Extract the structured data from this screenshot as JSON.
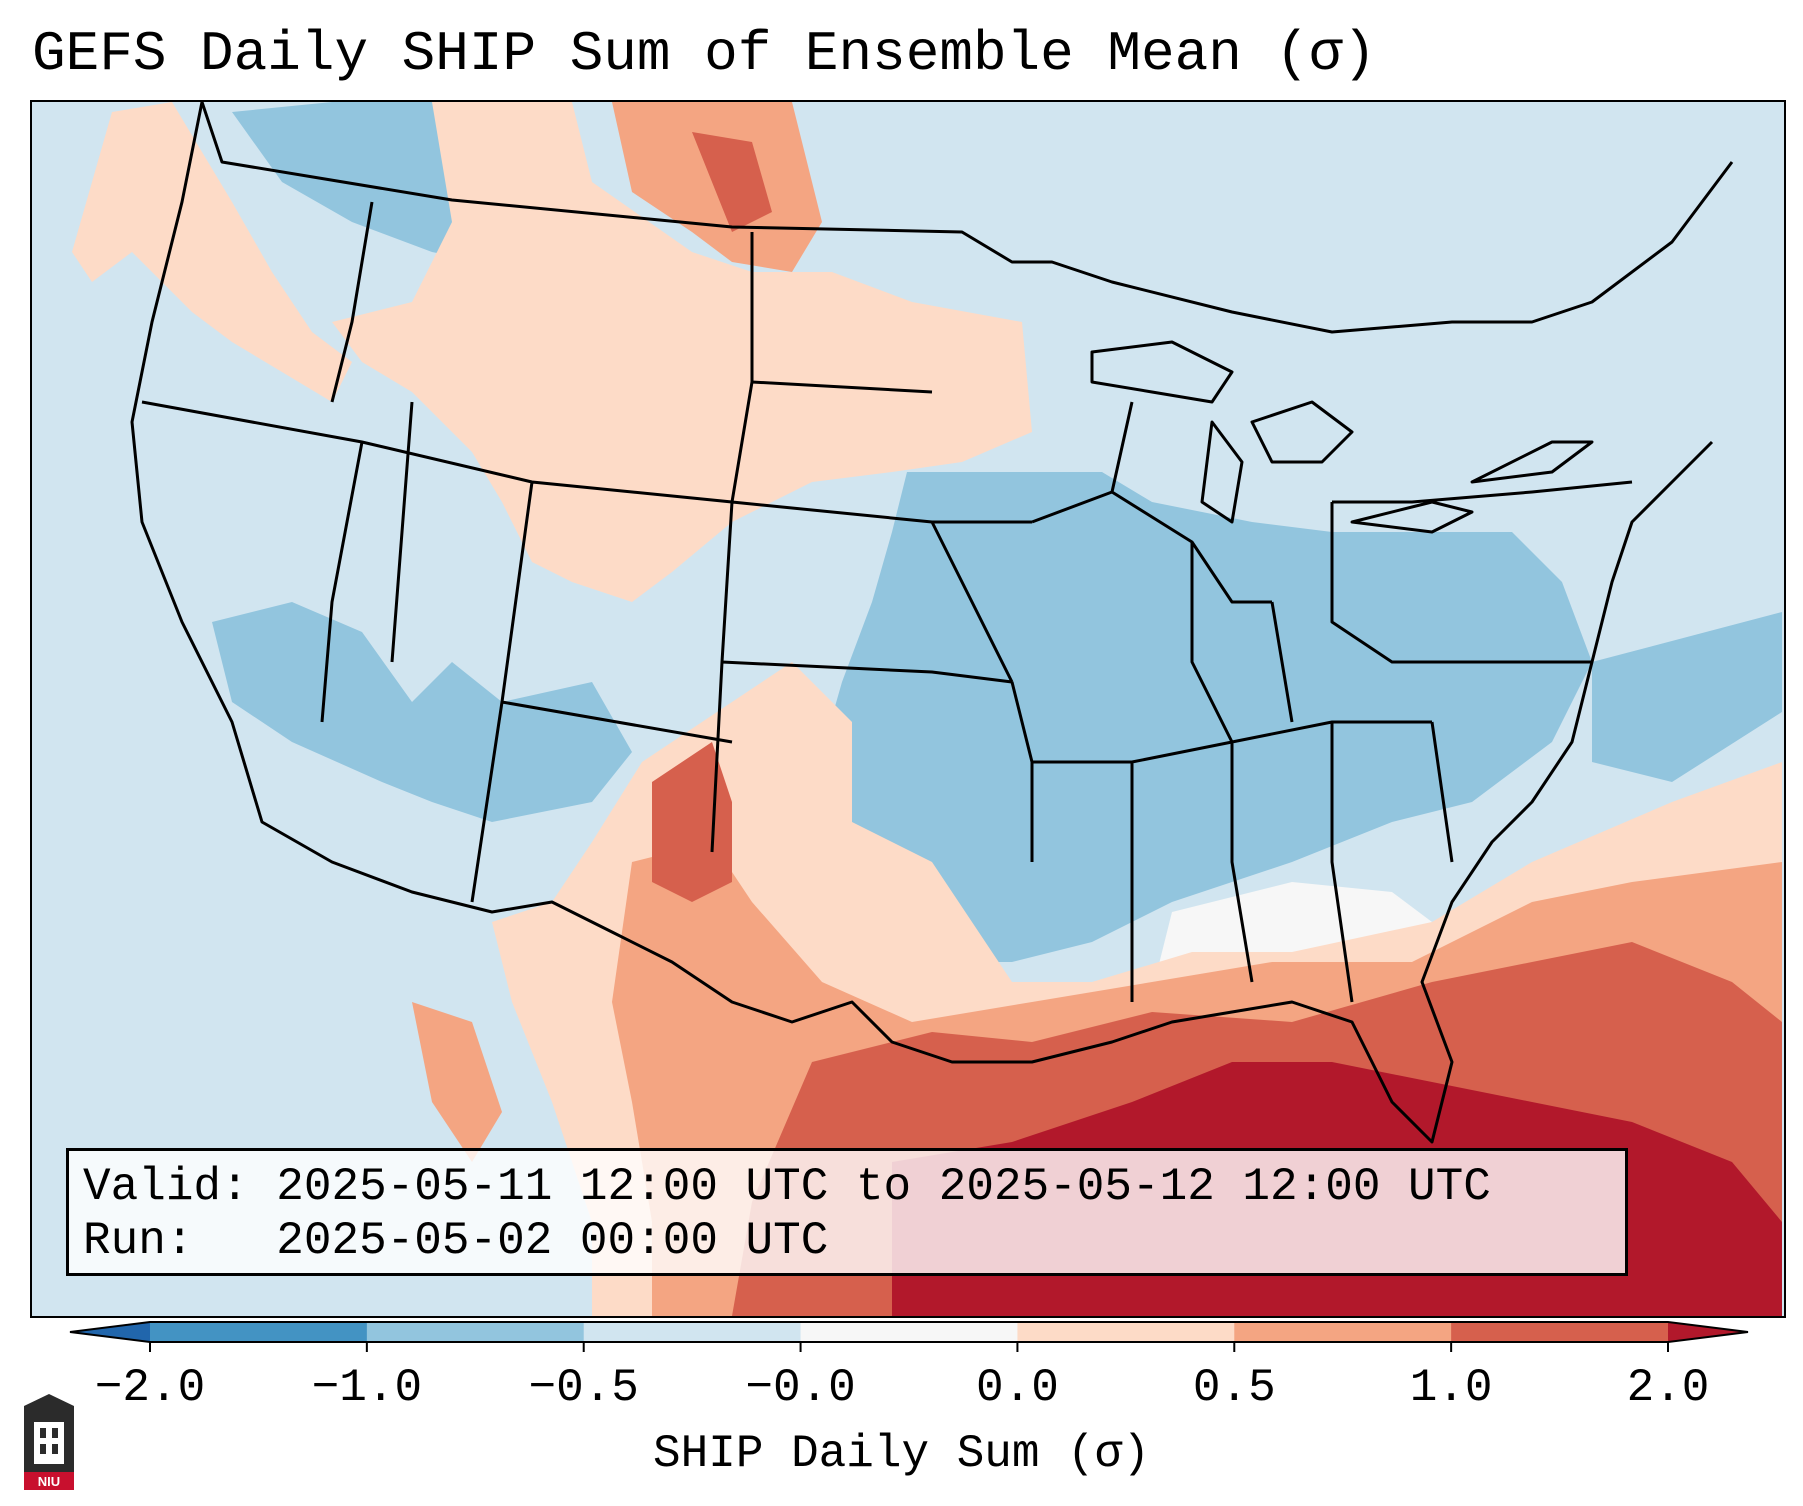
{
  "title": "GEFS Daily SHIP Sum of Ensemble Mean (σ)",
  "valid": {
    "label": "Valid:",
    "value": "2025-05-11 12:00 UTC to 2025-05-12 12:00 UTC"
  },
  "run": {
    "label": "Run:",
    "value": "2025-05-02 00:00 UTC"
  },
  "colorbar": {
    "label": "SHIP Daily Sum (σ)",
    "ticks": [
      "−2.0",
      "−1.0",
      "−0.5",
      "−0.0",
      "0.0",
      "0.5",
      "1.0",
      "2.0"
    ],
    "colors": [
      "#4393c3",
      "#92c5de",
      "#d1e5f0",
      "#f7f7f7",
      "#fddbc7",
      "#f4a582",
      "#d6604d",
      "#b2182b"
    ],
    "extend": "both"
  },
  "logo": {
    "text": "NIU"
  },
  "map": {
    "region": "Continental United States",
    "background_color": "#d1e5f0"
  }
}
